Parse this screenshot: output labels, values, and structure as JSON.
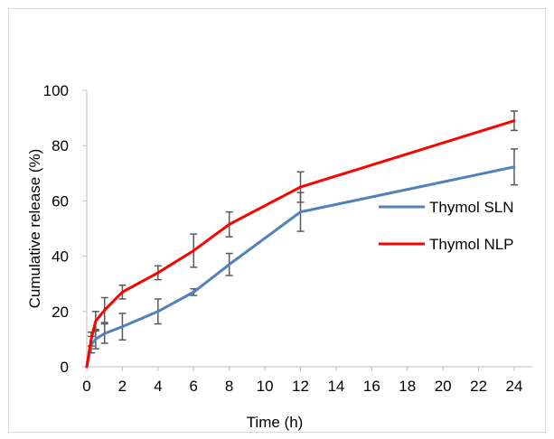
{
  "chart_data": {
    "type": "line",
    "xlabel": "Time (h)",
    "ylabel": "Cumulative release (%)",
    "xlim": [
      0,
      25
    ],
    "ylim": [
      0,
      100
    ],
    "x_ticks": [
      0,
      2,
      4,
      6,
      8,
      10,
      12,
      14,
      16,
      18,
      20,
      22,
      24
    ],
    "y_ticks": [
      0,
      20,
      40,
      60,
      80,
      100
    ],
    "grid": false,
    "legend_position": "right",
    "series": [
      {
        "name": "Thymol SLN",
        "color": "#4f81bd",
        "x": [
          0,
          0.25,
          0.5,
          1,
          2,
          4,
          6,
          8,
          12,
          24
        ],
        "y": [
          0,
          8,
          10,
          12,
          14.5,
          20,
          27,
          37,
          56,
          72.3
        ],
        "err": [
          0,
          3,
          3.5,
          3.5,
          4.8,
          4.5,
          1.2,
          4,
          7,
          6.5
        ]
      },
      {
        "name": "Thymol NLP",
        "color": "#ff0000",
        "x": [
          0,
          0.25,
          0.5,
          1,
          2,
          4,
          6,
          8,
          12,
          24
        ],
        "y": [
          0,
          10,
          16.5,
          20.5,
          27,
          34,
          42,
          51.5,
          65,
          89
        ],
        "err": [
          0,
          2.5,
          3.5,
          4.5,
          2.5,
          2.5,
          6,
          4.5,
          5.5,
          3.5
        ]
      }
    ]
  }
}
